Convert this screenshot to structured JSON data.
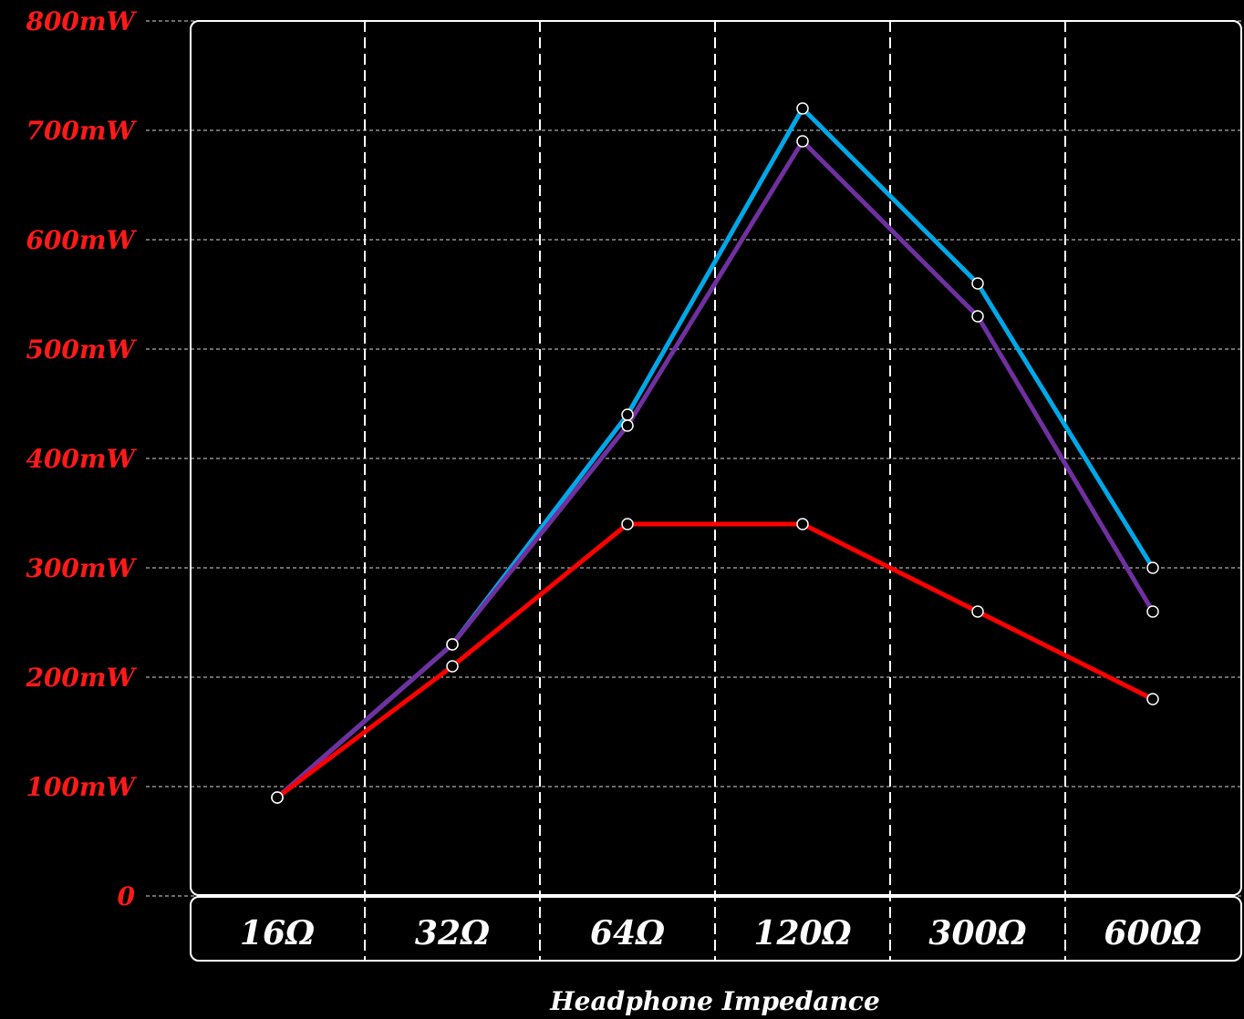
{
  "chart_data": {
    "type": "line",
    "title": "",
    "xlabel": "Headphone Impedance",
    "ylabel": "",
    "categories": [
      "16Ω",
      "32Ω",
      "64Ω",
      "120Ω",
      "300Ω",
      "600Ω"
    ],
    "ytick_labels": [
      "0",
      "100mW",
      "200mW",
      "300mW",
      "400mW",
      "500mW",
      "600mW",
      "700mW",
      "800mW"
    ],
    "ylim": [
      0,
      800
    ],
    "grid": true,
    "legend": "none",
    "series": [
      {
        "color": "#00a8e8",
        "values": [
          90,
          230,
          440,
          720,
          560,
          300
        ]
      },
      {
        "color": "#7030a0",
        "values": [
          90,
          230,
          430,
          690,
          530,
          260
        ]
      },
      {
        "color": "#ff0000",
        "values": [
          90,
          210,
          340,
          340,
          260,
          180
        ]
      }
    ]
  },
  "colors": {
    "background": "#000000",
    "frame": "#ffffff",
    "grid": "#ffffff",
    "ytick_text": "#ff1a1a",
    "xtick_text": "#ffffff",
    "marker_fill": "#000000",
    "marker_stroke": "#ffffff"
  }
}
